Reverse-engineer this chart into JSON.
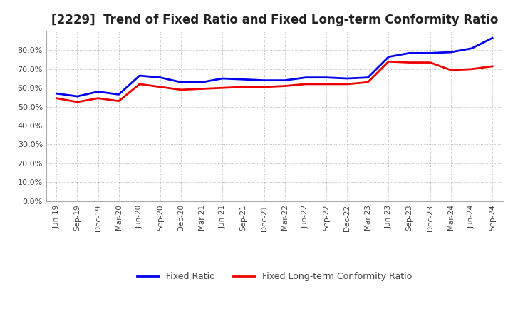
{
  "title": "[2229]  Trend of Fixed Ratio and Fixed Long-term Conformity Ratio",
  "title_fontsize": 12,
  "x_labels": [
    "Jun-19",
    "Sep-19",
    "Dec-19",
    "Mar-20",
    "Jun-20",
    "Sep-20",
    "Dec-20",
    "Mar-21",
    "Jun-21",
    "Sep-21",
    "Dec-21",
    "Mar-22",
    "Jun-22",
    "Sep-22",
    "Dec-22",
    "Mar-23",
    "Jun-23",
    "Sep-23",
    "Dec-23",
    "Mar-24",
    "Jun-24",
    "Sep-24"
  ],
  "fixed_ratio": [
    57.0,
    55.5,
    58.0,
    56.5,
    66.5,
    65.5,
    63.0,
    63.0,
    65.0,
    64.5,
    64.0,
    64.0,
    65.5,
    65.5,
    65.0,
    65.5,
    76.5,
    78.5,
    78.5,
    79.0,
    81.0,
    86.5
  ],
  "fixed_lt_ratio": [
    54.5,
    52.5,
    54.5,
    53.0,
    62.0,
    60.5,
    59.0,
    59.5,
    60.0,
    60.5,
    60.5,
    61.0,
    62.0,
    62.0,
    62.0,
    63.0,
    74.0,
    73.5,
    73.5,
    69.5,
    70.0,
    71.5
  ],
  "fixed_ratio_color": "#0000ee",
  "fixed_lt_ratio_color": "#ee0000",
  "line_width": 2.0,
  "ylim": [
    0,
    90
  ],
  "yticks": [
    0,
    10,
    20,
    30,
    40,
    50,
    60,
    70,
    80
  ],
  "background_color": "#ffffff",
  "grid_color": "#aaaaaa",
  "legend_labels": [
    "Fixed Ratio",
    "Fixed Long-term Conformity Ratio"
  ]
}
